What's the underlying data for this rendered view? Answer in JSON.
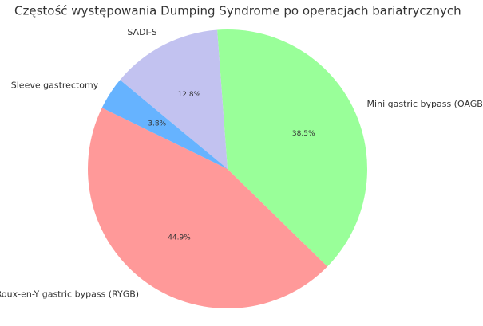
{
  "chart_data": {
    "type": "pie",
    "title": "Częstość występowania Dumping Syndrome po operacjach bariatrycznych",
    "categories": [
      "Roux-en-Y gastric bypass (RYGB)",
      "Mini gastric bypass (OAGB)",
      "SADI-S",
      "Sleeve gastrectomy"
    ],
    "values": [
      44.9,
      38.5,
      12.8,
      3.8
    ],
    "value_labels": [
      "44.9%",
      "38.5%",
      "12.8%",
      "3.8%"
    ],
    "colors": [
      "#ff9999",
      "#99ff99",
      "#c2c2f0",
      "#66b3ff"
    ]
  }
}
